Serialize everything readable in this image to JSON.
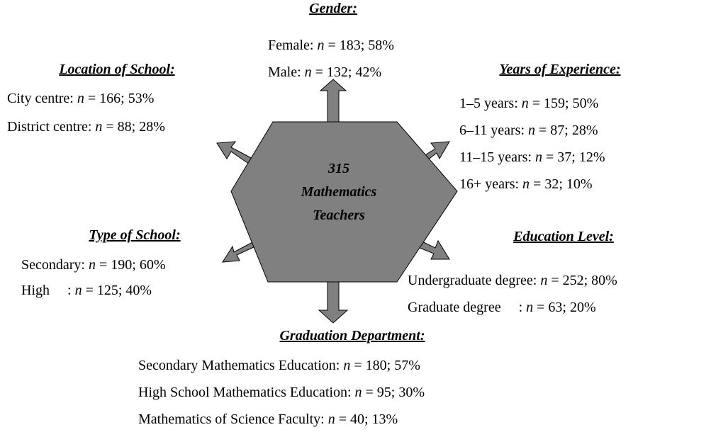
{
  "center": {
    "lines": [
      "315",
      "Mathematics",
      "Teachers"
    ]
  },
  "groups": [
    {
      "title": "Gender:",
      "items": [
        {
          "label": "Female: ",
          "n": "n",
          "stats": " = 183; 58%"
        },
        {
          "label": "Male: ",
          "n": "n",
          "stats": " = 132; 42%"
        }
      ]
    },
    {
      "title": "Location of School:",
      "items": [
        {
          "label": "City centre: ",
          "n": "n",
          "stats": " = 166; 53%"
        },
        {
          "label": "District centre: ",
          "n": "n",
          "stats": " = 88; 28%"
        }
      ]
    },
    {
      "title": "Years of Experience:",
      "items": [
        {
          "label": "1–5 years: ",
          "n": "n",
          "stats": " = 159; 50%"
        },
        {
          "label": "6–11 years: ",
          "n": "n",
          "stats": " = 87; 28%"
        },
        {
          "label": "11–15 years: ",
          "n": "n",
          "stats": " = 37; 12%"
        },
        {
          "label": "16+ years: ",
          "n": "n",
          "stats": " = 32; 10%"
        }
      ]
    },
    {
      "title": "Type of School:",
      "items": [
        {
          "label": "Secondary: ",
          "n": "n",
          "stats": " = 190; 60%"
        },
        {
          "label": "High     : ",
          "n": "n",
          "stats": " = 125; 40%"
        }
      ]
    },
    {
      "title": "Education Level:",
      "items": [
        {
          "label": "Undergraduate degree: ",
          "n": "n",
          "stats": " = 252; 80%"
        },
        {
          "label": "Graduate degree     : ",
          "n": "n",
          "stats": " = 63; 20%"
        }
      ]
    },
    {
      "title": "Graduation Department:",
      "items": [
        {
          "label": "Secondary Mathematics Education: ",
          "n": "n",
          "stats": " = 180; 57%"
        },
        {
          "label": "High School Mathematics Education: ",
          "n": "n",
          "stats": " = 95; 30%"
        },
        {
          "label": "Mathematics of Science Faculty: ",
          "n": "n",
          "stats": " = 40; 13%"
        }
      ]
    }
  ]
}
